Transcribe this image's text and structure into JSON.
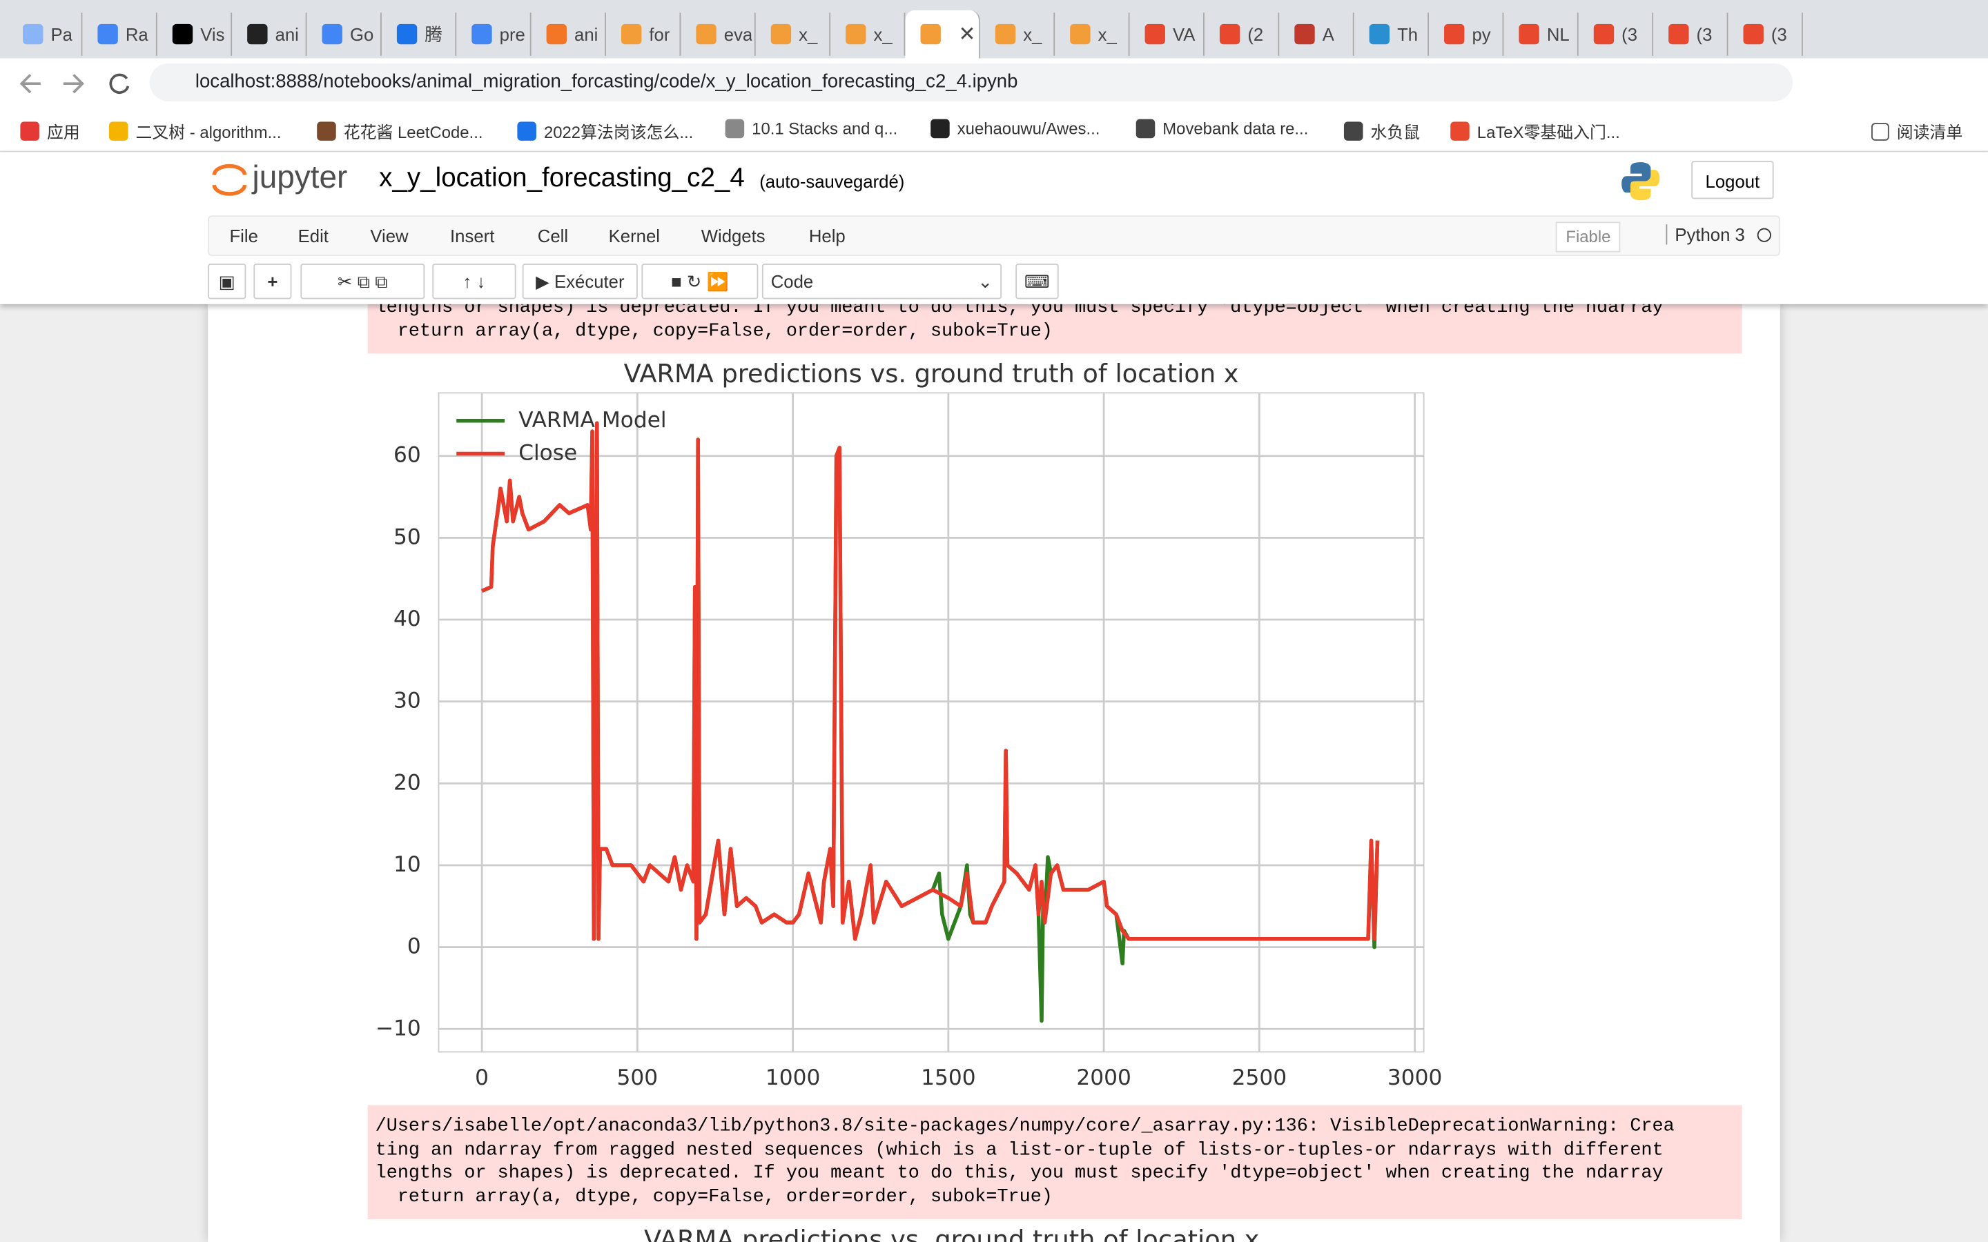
{
  "browser": {
    "tabs": [
      "Pa",
      "Ra",
      "Vis",
      "ani",
      "Go",
      "腾",
      "pre",
      "ani",
      "for",
      "eva",
      "x_",
      "x_",
      "x_",
      "x_",
      "VA",
      "(2",
      "A",
      "Th",
      "py",
      "NL",
      "(3",
      "(3",
      "(3"
    ],
    "url": "localhost:8888/notebooks/animal_migration_forcasting/code/x_y_location_forecasting_c2_4.ipynb",
    "bookmarks": [
      "应用",
      "二叉树 - algorithm...",
      "花花酱 LeetCode...",
      "2022算法岗该怎么...",
      "10.1 Stacks and q...",
      "xuehaouwu/Awes...",
      "Movebank data re...",
      "水负鼠",
      "LaTeX零基础入门..."
    ],
    "reading_list": "阅读清单"
  },
  "notebook": {
    "logo": "jupyter",
    "name": "x_y_location_forecasting_c2_4",
    "status": "(auto-sauvegardé)",
    "logout": "Logout",
    "menu": [
      "File",
      "Edit",
      "View",
      "Insert",
      "Cell",
      "Kernel",
      "Widgets",
      "Help"
    ],
    "trusted": "Fiable",
    "kernel": "Python 3",
    "run": "Exécuter",
    "cell_type": "Code"
  },
  "outputs": [
    {
      "lines": [
        "lengths or shapes) is deprecated. If you meant to do this, you must specify 'dtype=object' when creating the ndarray",
        "  return array(a, dtype, copy=False, order=order, subok=True)"
      ]
    },
    {
      "lines": [
        "/Users/isabelle/opt/anaconda3/lib/python3.8/site-packages/numpy/core/_asarray.py:136: VisibleDeprecationWarning: Crea",
        "ting an ndarray from ragged nested sequences (which is a list-or-tuple of lists-or-tuples-or ndarrays with different",
        "lengths or shapes) is deprecated. If you meant to do this, you must specify 'dtype=object' when creating the ndarray",
        "  return array(a, dtype, copy=False, order=order, subok=True)"
      ]
    }
  ],
  "chart_data": {
    "type": "line",
    "title": "VARMA predictions vs. ground truth of location x",
    "xlim": [
      -139,
      3029
    ],
    "ylim": [
      -12.8,
      67.7
    ],
    "xticks": [
      0,
      500,
      1000,
      1500,
      2000,
      2500,
      3000
    ],
    "yticks": [
      {
        "value": -10,
        "label": "−10"
      },
      0,
      10,
      20,
      30,
      40,
      50,
      60
    ],
    "grid": true,
    "legend": "upper left",
    "series": [
      {
        "name": "VARMA Model",
        "color": "#2e7d1f",
        "x": [
          0,
          30,
          35,
          50,
          60,
          80,
          90,
          100,
          120,
          130,
          150,
          200,
          250,
          280,
          340,
          350,
          355,
          360,
          370,
          375,
          380,
          400,
          420,
          480,
          520,
          540,
          600,
          620,
          640,
          660,
          680,
          685,
          690,
          695,
          700,
          720,
          760,
          780,
          800,
          820,
          850,
          880,
          900,
          940,
          980,
          1000,
          1020,
          1050,
          1090,
          1100,
          1120,
          1130,
          1140,
          1150,
          1160,
          1180,
          1200,
          1220,
          1250,
          1260,
          1300,
          1350,
          1400,
          1450,
          1470,
          1480,
          1500,
          1540,
          1560,
          1570,
          1580,
          1620,
          1640,
          1680,
          1685,
          1690,
          1720,
          1760,
          1780,
          1790,
          1800,
          1805,
          1810,
          1820,
          1830,
          1850,
          1870,
          1900,
          1950,
          2000,
          2010,
          2040,
          2060,
          2065,
          2080,
          2500,
          2850,
          2860,
          2870,
          2880
        ],
        "values": [
          43.5,
          44,
          49,
          53,
          56,
          52,
          57,
          52,
          55,
          53,
          51,
          52,
          54,
          53,
          54,
          51,
          63,
          1,
          64,
          1,
          12,
          12,
          10,
          10,
          8,
          10,
          8,
          11,
          7,
          10,
          8,
          44,
          1,
          62,
          3,
          4,
          13,
          4,
          12,
          5,
          6,
          5,
          3,
          4,
          3,
          3,
          4,
          9,
          3,
          8,
          12,
          5,
          60,
          61,
          3,
          8,
          1,
          4,
          10,
          3,
          8,
          5,
          6,
          7,
          9,
          4,
          1,
          5,
          10,
          4,
          3,
          3,
          5,
          8,
          24,
          10,
          9,
          7,
          10,
          4,
          -9,
          6,
          3,
          11,
          9,
          10,
          7,
          7,
          7,
          8,
          5,
          4,
          -2,
          2,
          1,
          1,
          1,
          13,
          0,
          13
        ]
      },
      {
        "name": "Close",
        "color": "#e8392a",
        "x": [
          0,
          30,
          35,
          50,
          60,
          80,
          90,
          100,
          120,
          130,
          150,
          200,
          250,
          280,
          340,
          350,
          355,
          360,
          370,
          375,
          380,
          400,
          420,
          480,
          520,
          540,
          600,
          620,
          640,
          660,
          680,
          685,
          690,
          695,
          700,
          720,
          760,
          780,
          800,
          820,
          850,
          880,
          900,
          940,
          980,
          1000,
          1020,
          1050,
          1090,
          1100,
          1120,
          1130,
          1140,
          1150,
          1160,
          1180,
          1200,
          1220,
          1250,
          1260,
          1300,
          1350,
          1400,
          1450,
          1500,
          1540,
          1560,
          1580,
          1620,
          1640,
          1680,
          1685,
          1690,
          1720,
          1760,
          1780,
          1790,
          1800,
          1810,
          1830,
          1850,
          1870,
          1900,
          1950,
          2000,
          2010,
          2040,
          2060,
          2080,
          2500,
          2850,
          2860,
          2870,
          2880
        ],
        "values": [
          43.5,
          44,
          49,
          53,
          56,
          52,
          57,
          52,
          55,
          53,
          51,
          52,
          54,
          53,
          54,
          51,
          63,
          1,
          64,
          1,
          12,
          12,
          10,
          10,
          8,
          10,
          8,
          11,
          7,
          10,
          8,
          44,
          1,
          62,
          3,
          4,
          13,
          4,
          12,
          5,
          6,
          5,
          3,
          4,
          3,
          3,
          4,
          9,
          3,
          8,
          12,
          5,
          60,
          61,
          3,
          8,
          1,
          4,
          10,
          3,
          8,
          5,
          6,
          7,
          6,
          5,
          9,
          3,
          3,
          5,
          8,
          24,
          10,
          9,
          7,
          10,
          4,
          8,
          3,
          9,
          10,
          7,
          7,
          7,
          8,
          5,
          4,
          2,
          1,
          1,
          1,
          13,
          1,
          13
        ]
      }
    ]
  },
  "next_chart_title": "VARMA predictions vs. ground truth of location x"
}
